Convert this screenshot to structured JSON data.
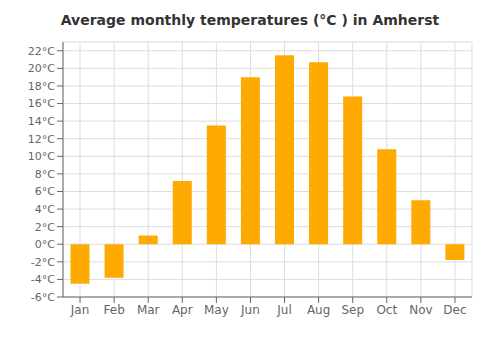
{
  "chart_data": {
    "type": "bar",
    "title": "Average monthly temperatures (°C ) in Amherst",
    "categories": [
      "Jan",
      "Feb",
      "Mar",
      "Apr",
      "May",
      "Jun",
      "Jul",
      "Aug",
      "Sep",
      "Oct",
      "Nov",
      "Dec"
    ],
    "values": [
      -4.5,
      -3.8,
      1.0,
      7.2,
      13.5,
      19.0,
      21.5,
      20.7,
      16.8,
      10.8,
      5.0,
      -1.8
    ],
    "color": "#FFAA00",
    "ylim": [
      -6,
      23
    ],
    "yticks": [
      {
        "value": -6,
        "label": "-6°C"
      },
      {
        "value": -4,
        "label": "-4°C"
      },
      {
        "value": -2,
        "label": "-2°C"
      },
      {
        "value": 0,
        "label": "0°C"
      },
      {
        "value": 2,
        "label": "2°C"
      },
      {
        "value": 4,
        "label": "4°C"
      },
      {
        "value": 6,
        "label": "6°C"
      },
      {
        "value": 8,
        "label": "8°C"
      },
      {
        "value": 10,
        "label": "10°C"
      },
      {
        "value": 12,
        "label": "12°C"
      },
      {
        "value": 14,
        "label": "14°C"
      },
      {
        "value": 16,
        "label": "16°C"
      },
      {
        "value": 18,
        "label": "18°C"
      },
      {
        "value": 20,
        "label": "20°C"
      },
      {
        "value": 22,
        "label": "22°C"
      }
    ],
    "grid": true
  }
}
